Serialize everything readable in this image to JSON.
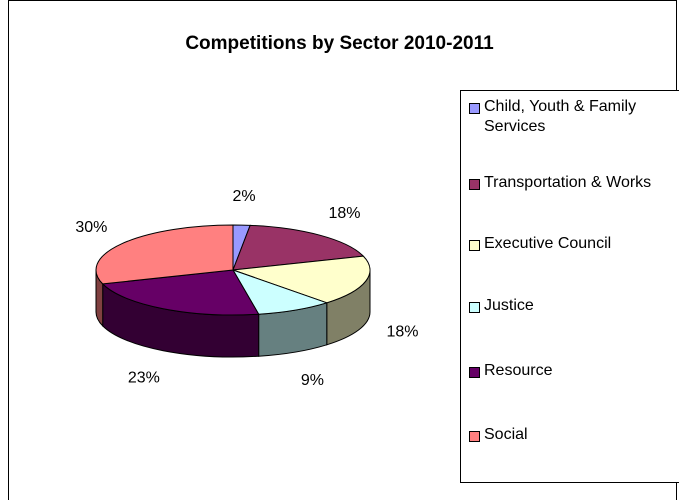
{
  "chart_data": {
    "type": "pie",
    "title": "Competitions by Sector 2010-2011",
    "legend_position": "right",
    "categories": [
      "Child, Youth & Family Services",
      "Transportation & Works",
      "Executive Council",
      "Justice",
      "Resource",
      "Social"
    ],
    "values": [
      2,
      18,
      18,
      9,
      23,
      30
    ],
    "data_labels": [
      "2%",
      "18%",
      "18%",
      "9%",
      "23%",
      "30%"
    ],
    "colors": [
      "#9999ff",
      "#993366",
      "#ffffcc",
      "#ccffff",
      "#660066",
      "#ff8080"
    ]
  }
}
